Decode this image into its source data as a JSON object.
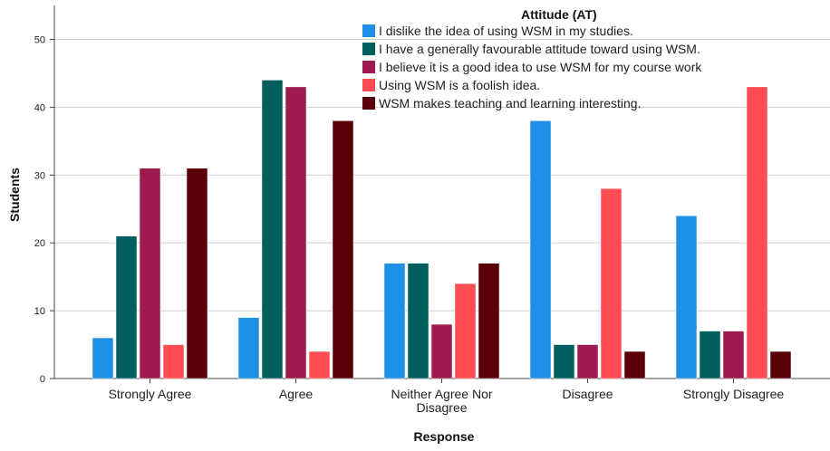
{
  "chart_data": {
    "type": "bar",
    "title": "",
    "xlabel": "Response",
    "ylabel": "Students",
    "ylim": [
      0,
      55
    ],
    "yticks": [
      0,
      10,
      20,
      30,
      40,
      50
    ],
    "grid": "horizontal",
    "legend_title": "Attitude (AT)",
    "legend_position": "top-right",
    "categories": [
      [
        "Strongly Agree"
      ],
      [
        "Agree"
      ],
      [
        "Neither Agree Nor",
        "Disagree"
      ],
      [
        "Disagree"
      ],
      [
        "Strongly Disagree"
      ]
    ],
    "series": [
      {
        "name": "I dislike the idea of using WSM in my studies.",
        "color": "#1E90E6",
        "values": [
          6,
          9,
          17,
          38,
          24
        ]
      },
      {
        "name": "I have a generally favourable attitude toward using WSM.",
        "color": "#005E5E",
        "values": [
          21,
          44,
          17,
          5,
          7
        ]
      },
      {
        "name": "I believe it is a good idea to use WSM for my course work",
        "color": "#9E1A4E",
        "values": [
          31,
          43,
          8,
          5,
          7
        ]
      },
      {
        "name": "Using WSM is a foolish idea.",
        "color": "#FF4C55",
        "values": [
          5,
          4,
          14,
          28,
          43
        ]
      },
      {
        "name": "WSM makes teaching and learning interesting.",
        "color": "#5A0008",
        "values": [
          31,
          38,
          17,
          4,
          4
        ]
      }
    ]
  }
}
